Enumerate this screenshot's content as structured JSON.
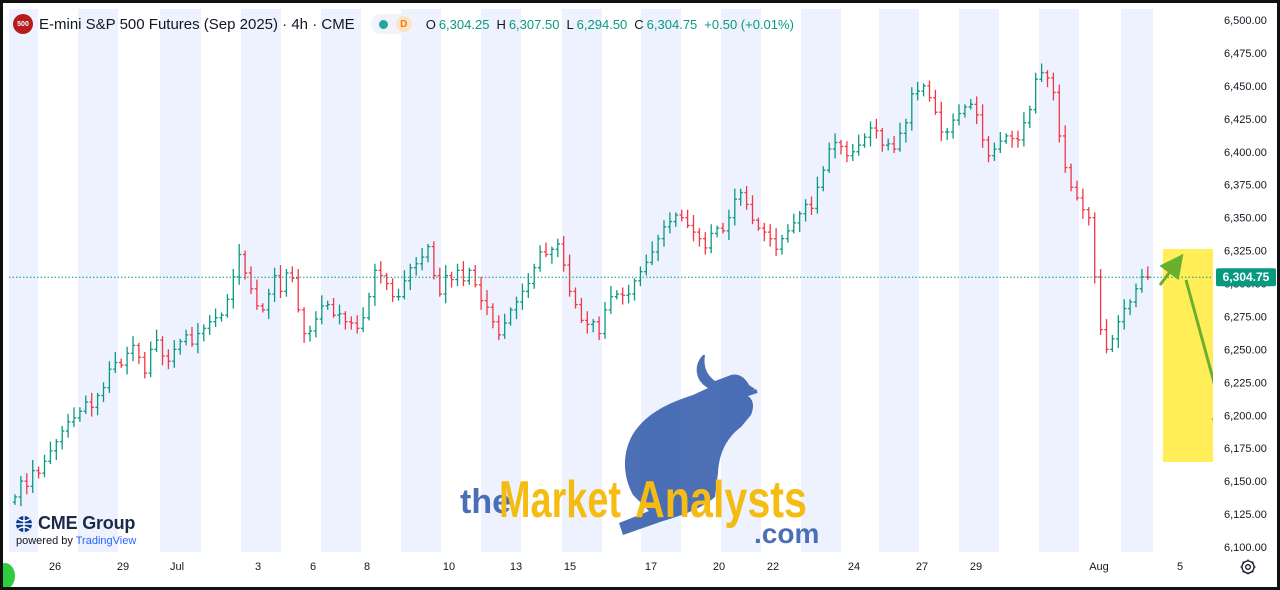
{
  "header": {
    "symbol_badge": "500",
    "title": "E-mini S&P 500 Futures (Sep 2025) · 4h · CME",
    "delay_badge": "D",
    "ohlc": {
      "o_label": "O",
      "o_value": "6,304.25",
      "h_label": "H",
      "h_value": "6,307.50",
      "l_label": "L",
      "l_value": "6,294.50",
      "c_label": "C",
      "c_value": "6,304.75",
      "change": "+0.50 (+0.01%)"
    }
  },
  "branding": {
    "logo_text": "CME Group",
    "powered_by": "powered by",
    "powered_brand": "TradingView",
    "watermark_the": "the",
    "watermark_market": "Market",
    "watermark_analysts": "Analysts",
    "watermark_com": ".com"
  },
  "colors": {
    "up": "#089981",
    "down": "#f23645",
    "session_band": "#edf2fe",
    "last_price_line": "#089981",
    "highlight_box": "#ffeb3b",
    "arrow": "#6aaf2e",
    "watermark_blue": "#3d63b0",
    "watermark_gold": "#f5b800"
  },
  "chart_data": {
    "type": "ohlc",
    "symbol": "E-mini S&P 500 Futures (Sep 2025)",
    "interval": "4h",
    "exchange": "CME",
    "ylim": [
      6100,
      6500
    ],
    "y_ticks": [
      "6,500.00",
      "6,475.00",
      "6,450.00",
      "6,425.00",
      "6,400.00",
      "6,375.00",
      "6,350.00",
      "6,325.00",
      "6,300.00",
      "6,275.00",
      "6,250.00",
      "6,225.00",
      "6,200.00",
      "6,175.00",
      "6,150.00",
      "6,125.00",
      "6,100.00"
    ],
    "x_ticks": [
      "26",
      "29",
      "Jul",
      "3",
      "6",
      "8",
      "10",
      "13",
      "15",
      "17",
      "20",
      "22",
      "24",
      "27",
      "29",
      "Aug",
      "5"
    ],
    "last_price": 6304.75,
    "last_price_label": "6,304.75",
    "grid": false,
    "series": [
      {
        "values": [
          6138,
          6150,
          6146,
          6158,
          6156,
          6165,
          6173,
          6180,
          6188,
          6195,
          6198,
          6203,
          6210,
          6206,
          6215,
          6221,
          6235,
          6240,
          6238,
          6247,
          6253,
          6244,
          6232,
          6250,
          6257,
          6245,
          6241,
          6250,
          6256,
          6261,
          6254,
          6262,
          6266,
          6271,
          6274,
          6276,
          6288,
          6305,
          6322,
          6308,
          6296,
          6283,
          6280,
          6292,
          6306,
          6294,
          6308,
          6304,
          6280,
          6262,
          6264,
          6273,
          6283,
          6284,
          6276,
          6277,
          6271,
          6270,
          6266,
          6274,
          6290,
          6310,
          6306,
          6300,
          6290,
          6290,
          6302,
          6312,
          6315,
          6320,
          6328,
          6306,
          6292,
          6306,
          6303,
          6310,
          6302,
          6310,
          6299,
          6287,
          6282,
          6271,
          6261,
          6270,
          6280,
          6286,
          6294,
          6300,
          6312,
          6324,
          6322,
          6326,
          6330,
          6314,
          6294,
          6284,
          6272,
          6269,
          6271,
          6262,
          6280,
          6290,
          6292,
          6291,
          6292,
          6302,
          6309,
          6316,
          6324,
          6334,
          6343,
          6347,
          6352,
          6350,
          6344,
          6339,
          6334,
          6327,
          6338,
          6342,
          6340,
          6350,
          6364,
          6369,
          6360,
          6348,
          6342,
          6339,
          6334,
          6326,
          6334,
          6340,
          6346,
          6353,
          6360,
          6357,
          6373,
          6386,
          6402,
          6407,
          6404,
          6397,
          6400,
          6405,
          6411,
          6418,
          6416,
          6405,
          6406,
          6402,
          6414,
          6422,
          6444,
          6446,
          6450,
          6441,
          6430,
          6415,
          6415,
          6424,
          6429,
          6434,
          6436,
          6428,
          6409,
          6397,
          6402,
          6408,
          6412,
          6410,
          6409,
          6422,
          6432,
          6455,
          6460,
          6456,
          6445,
          6412,
          6388,
          6373,
          6365,
          6356,
          6350,
          6305,
          6265,
          6250,
          6258,
          6271,
          6281,
          6286,
          6296,
          6305,
          6304.75
        ]
      }
    ]
  }
}
